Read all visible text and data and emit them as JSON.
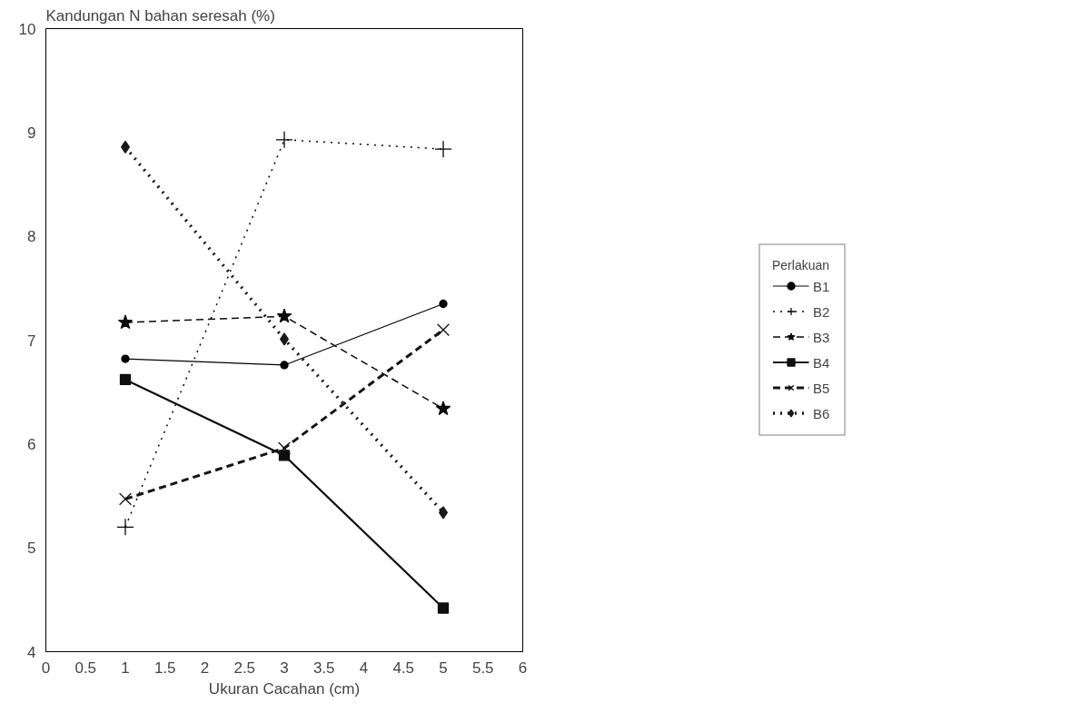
{
  "chart_data": {
    "type": "line",
    "ylabel": "Kandungan N bahan seresah (%)",
    "xlabel": "Ukuran Cacahan (cm)",
    "legend_title": "Perlakuan",
    "x": [
      1,
      3,
      5
    ],
    "series": [
      {
        "name": "B1",
        "color": "#000000",
        "values": [
          6.82,
          6.76,
          7.35
        ],
        "marker": "circle",
        "line_style": "solid"
      },
      {
        "name": "B2",
        "color": "#050505",
        "values": [
          5.2,
          8.93,
          8.84
        ],
        "marker": "cross",
        "line_style": "dotted"
      },
      {
        "name": "B3",
        "color": "#0a0a0a",
        "values": [
          7.17,
          7.23,
          6.34
        ],
        "marker": "star",
        "line_style": "dashed"
      },
      {
        "name": "B4",
        "color": "#0f0f0f",
        "values": [
          6.62,
          5.89,
          4.42
        ],
        "marker": "square",
        "line_style": "solid"
      },
      {
        "name": "B5",
        "color": "#141414",
        "values": [
          5.47,
          5.96,
          7.1
        ],
        "marker": "x",
        "line_style": "dashed"
      },
      {
        "name": "B6",
        "color": "#191919",
        "values": [
          8.86,
          7.01,
          5.34
        ],
        "marker": "diamond",
        "line_style": "dotted"
      }
    ],
    "xlim": [
      0,
      6
    ],
    "xticks": [
      0,
      0.5,
      1,
      1.5,
      2,
      2.5,
      3,
      3.5,
      4,
      4.5,
      5,
      5.5,
      6
    ],
    "ylim": [
      4,
      10
    ],
    "yticks": [
      4,
      5,
      6,
      7,
      8,
      9,
      10
    ],
    "grid": false,
    "legend": "right"
  }
}
